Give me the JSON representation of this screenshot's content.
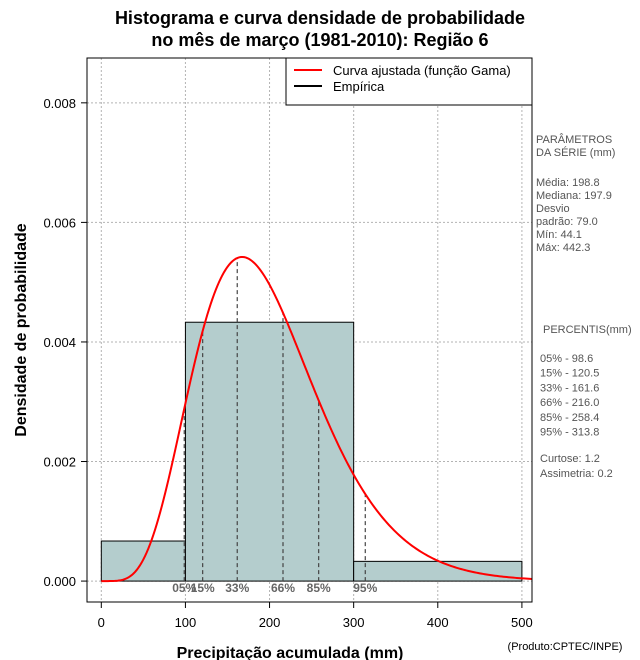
{
  "chart_data": {
    "type": "bar",
    "title_lines": [
      "Histograma e curva densidade de probabilidade",
      "no mês de março (1981-2010): Região 6"
    ],
    "xlabel": "Precipitação acumulada (mm)",
    "ylabel": "Densidade de probabilidade",
    "credit": "(Produto:CPTEC/INPE)",
    "xlim": [
      -17,
      512
    ],
    "ylim": [
      -0.00035,
      0.00875
    ],
    "x_ticks": [
      0,
      100,
      200,
      300,
      400,
      500
    ],
    "y_ticks": [
      0.0,
      0.002,
      0.004,
      0.006,
      0.008
    ],
    "y_tick_labels": [
      "0.000",
      "0.002",
      "0.004",
      "0.006",
      "0.008"
    ],
    "grid": true,
    "bins": [
      {
        "from": 0,
        "to": 100,
        "density": 0.00067
      },
      {
        "from": 100,
        "to": 300,
        "density": 0.00433
      },
      {
        "from": 300,
        "to": 500,
        "density": 0.00033
      }
    ],
    "bar_color": "#b4cdcd",
    "series": [
      {
        "name": "Curva ajustada (função Gama)",
        "color": "#ff0000",
        "distribution": "gamma",
        "shape": 6.34,
        "rate": 0.0319
      },
      {
        "name": "Empírica",
        "color": "#000000"
      }
    ],
    "legend_position": "top-right",
    "percentiles": [
      {
        "label": "05%",
        "value": 98.6
      },
      {
        "label": "15%",
        "value": 120.5
      },
      {
        "label": "33%",
        "value": 161.6
      },
      {
        "label": "66%",
        "value": 216.0
      },
      {
        "label": "85%",
        "value": 258.4
      },
      {
        "label": "95%",
        "value": 313.8
      }
    ]
  },
  "side_panel": {
    "params_title": [
      "PARÂMETROS",
      " DA SÉRIE (mm)"
    ],
    "params": [
      "Média:  198.8",
      "Mediana:  197.9",
      "Desvio",
      "padrão:  79.0",
      "Mín:  44.1",
      "Máx:  442.3"
    ],
    "percentis_title": "PERCENTIS(mm)",
    "percentis": [
      "05% -   98.6",
      "15% -  120.5",
      "33% -  161.6",
      "66% -  216.0",
      "85% -  258.4",
      "95% -  313.8"
    ],
    "shape_stats": [
      "Curtose:  1.2",
      "Assimetria:  0.2"
    ]
  }
}
